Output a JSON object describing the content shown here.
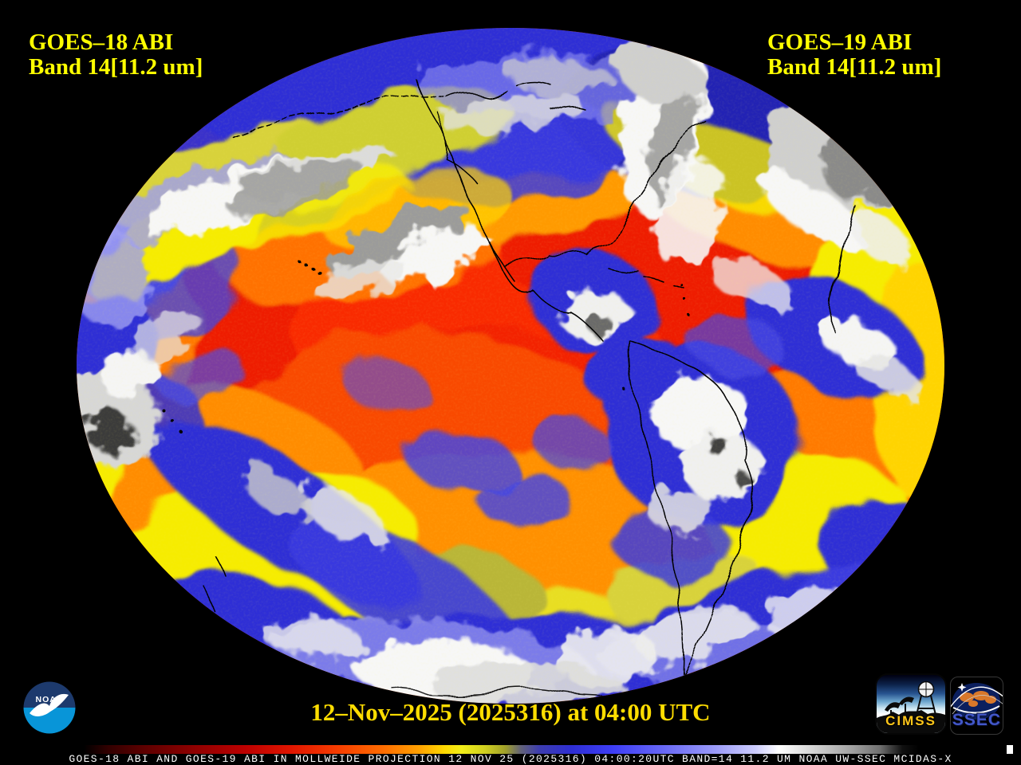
{
  "window": {
    "background": "#000000"
  },
  "labels": {
    "label_color": "#ffff00",
    "left_satellite_line1": "GOES–18 ABI",
    "left_satellite_line2": "Band 14[11.2 um]",
    "right_satellite_line1": "GOES–19 ABI",
    "right_satellite_line2": "Band 14[11.2 um]"
  },
  "timestamp": {
    "text": "12–Nov–2025 (2025316) at 04:00 UTC",
    "color": "#ffdd00"
  },
  "status_bar": {
    "text": "GOES-18 ABI AND GOES-19 ABI IN MOLLWEIDE PROJECTION 12 NOV 25 (2025316) 04:00:20UTC BAND=14 11.2 UM NOAA UW-SSEC MCIDAS-X",
    "color": "#ffffff"
  },
  "colorbar": {
    "stops": [
      [
        0,
        "#000000"
      ],
      [
        0.082,
        "#000000"
      ],
      [
        0.105,
        "#300000"
      ],
      [
        0.14,
        "#5c0000"
      ],
      [
        0.19,
        "#8e0000"
      ],
      [
        0.24,
        "#bc0000"
      ],
      [
        0.285,
        "#e01500"
      ],
      [
        0.33,
        "#f63c00"
      ],
      [
        0.375,
        "#ff6c00"
      ],
      [
        0.41,
        "#ffa000"
      ],
      [
        0.435,
        "#ffd800"
      ],
      [
        0.452,
        "#f2ee18"
      ],
      [
        0.475,
        "#d0d020"
      ],
      [
        0.495,
        "#a0a02a"
      ],
      [
        0.51,
        "#636378"
      ],
      [
        0.528,
        "#3d3dae"
      ],
      [
        0.56,
        "#2e2ed4"
      ],
      [
        0.6,
        "#3d3df6"
      ],
      [
        0.65,
        "#6868f6"
      ],
      [
        0.7,
        "#9a9af8"
      ],
      [
        0.74,
        "#ccccfd"
      ],
      [
        0.763,
        "#ffffff"
      ],
      [
        0.8,
        "#cfcfcf"
      ],
      [
        0.835,
        "#a0a0a0"
      ],
      [
        0.862,
        "#707070"
      ],
      [
        0.873,
        "#3e3e3e"
      ],
      [
        0.884,
        "#101010"
      ],
      [
        0.9,
        "#000000"
      ],
      [
        1,
        "#000000"
      ]
    ],
    "cursor_position": 0.986,
    "cursor_color": "#ffffff"
  },
  "logos": {
    "noaa": {
      "text": "NOAA",
      "top_color": "#1d3a6d",
      "bottom_color": "#0895d8"
    },
    "cimss": {
      "text": "CIMSS",
      "text_color": "#ffc61a"
    },
    "ssec": {
      "text": "SSEC",
      "text_color": "#4257c9"
    }
  }
}
